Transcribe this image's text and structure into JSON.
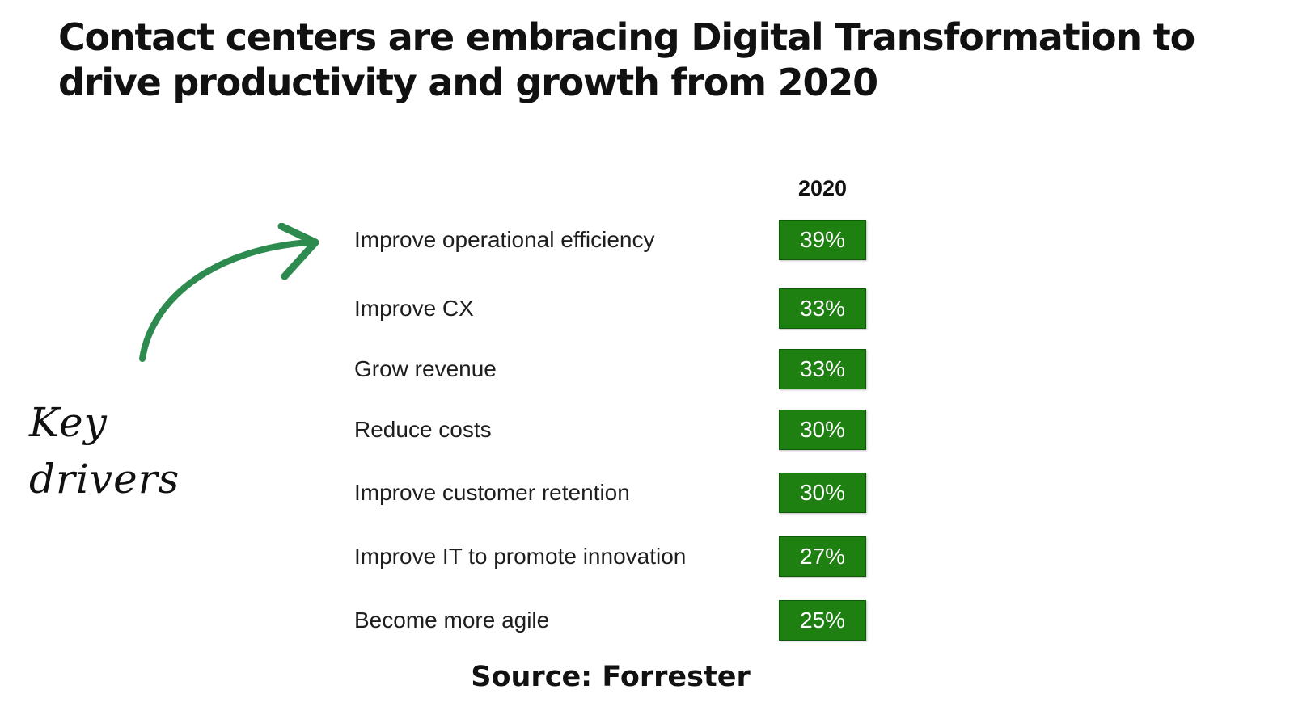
{
  "title": {
    "line1": "Contact centers are embracing Digital Transformation to",
    "line2": "drive productivity and growth from 2020"
  },
  "annotation": {
    "text": "Key drivers",
    "arrow_icon": "curved-arrow-icon",
    "arrow_color": "#2e8b4f"
  },
  "source": "Source: Forrester",
  "colors": {
    "badge": "#1f8012",
    "badge_text": "#ffffff"
  },
  "chart_data": {
    "type": "table",
    "title": "Contact centers are embracing Digital Transformation to drive productivity and growth from 2020",
    "column_header": "2020",
    "categories": [
      "Improve operational efficiency",
      "Improve CX",
      "Grow revenue",
      "Reduce costs",
      "Improve customer retention",
      "Improve IT to promote innovation",
      "Become more agile"
    ],
    "values": [
      "39%",
      "33%",
      "33%",
      "30%",
      "30%",
      "27%",
      "25%"
    ],
    "value_numbers": [
      39,
      33,
      33,
      30,
      30,
      27,
      25
    ],
    "unit": "%",
    "source": "Source: Forrester"
  }
}
